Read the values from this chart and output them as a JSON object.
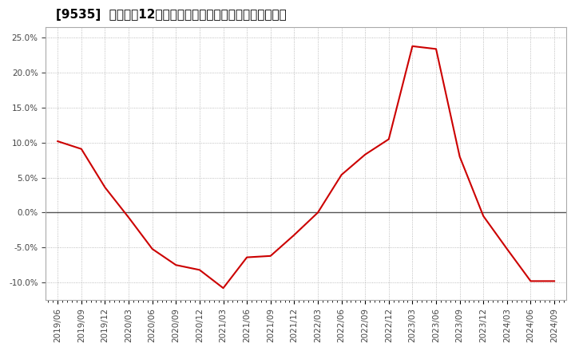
{
  "title": "[9535]  売上高の12か月移動合計の対前年同期増減率の推移",
  "x_labels": [
    "2019/06",
    "2019/09",
    "2019/12",
    "2020/03",
    "2020/06",
    "2020/09",
    "2020/12",
    "2021/03",
    "2021/06",
    "2021/09",
    "2021/12",
    "2022/03",
    "2022/06",
    "2022/09",
    "2022/12",
    "2023/03",
    "2023/06",
    "2023/09",
    "2023/12",
    "2024/03",
    "2024/06",
    "2024/09"
  ],
  "x_values": [
    0,
    1,
    2,
    3,
    4,
    5,
    6,
    7,
    8,
    9,
    10,
    11,
    12,
    13,
    14,
    15,
    16,
    17,
    18,
    19,
    20,
    21
  ],
  "y_values": [
    0.102,
    0.091,
    0.036,
    -0.007,
    -0.052,
    -0.075,
    -0.082,
    -0.108,
    -0.064,
    -0.062,
    -0.032,
    0.0,
    0.054,
    0.083,
    0.105,
    0.238,
    0.234,
    0.08,
    -0.005,
    -0.052,
    -0.098,
    -0.098
  ],
  "line_color": "#cc0000",
  "background_color": "#ffffff",
  "plot_bg_color": "#ffffff",
  "grid_color": "#aaaaaa",
  "zero_line_color": "#555555",
  "ylim": [
    -0.125,
    0.265
  ],
  "yticks": [
    -0.1,
    -0.05,
    0.0,
    0.05,
    0.1,
    0.15,
    0.2,
    0.25
  ],
  "title_fontsize": 11,
  "tick_fontsize": 7.5
}
